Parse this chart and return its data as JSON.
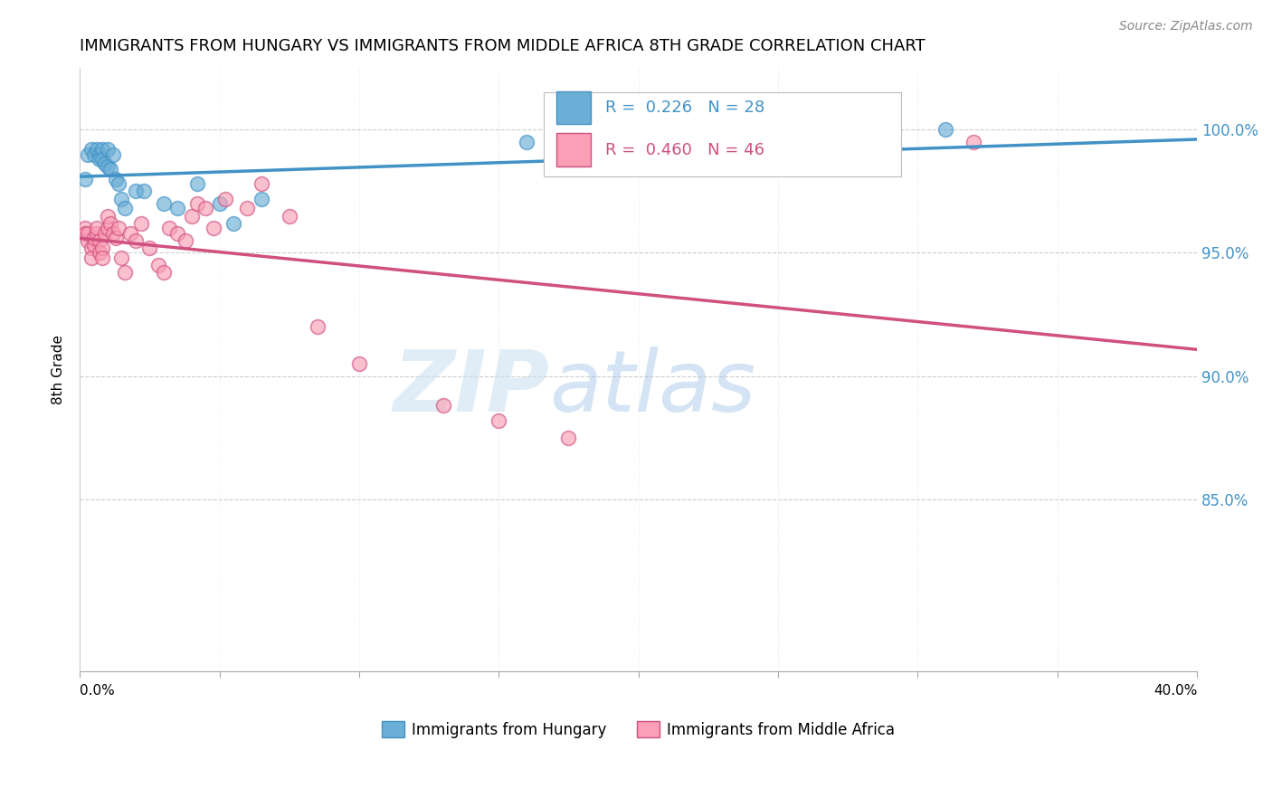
{
  "title": "IMMIGRANTS FROM HUNGARY VS IMMIGRANTS FROM MIDDLE AFRICA 8TH GRADE CORRELATION CHART",
  "source": "Source: ZipAtlas.com",
  "ylabel": "8th Grade",
  "yaxis_labels": [
    "100.0%",
    "95.0%",
    "90.0%",
    "85.0%"
  ],
  "yaxis_values": [
    1.0,
    0.95,
    0.9,
    0.85
  ],
  "xlim": [
    0.0,
    0.4
  ],
  "ylim": [
    0.78,
    1.025
  ],
  "color_hungary": "#6baed6",
  "color_africa": "#fa9fb5",
  "color_line_hungary": "#4292c6",
  "color_line_africa": "#d05080",
  "hungary_x": [
    0.002,
    0.003,
    0.004,
    0.005,
    0.006,
    0.007,
    0.007,
    0.008,
    0.008,
    0.009,
    0.01,
    0.01,
    0.011,
    0.012,
    0.013,
    0.014,
    0.015,
    0.016,
    0.02,
    0.023,
    0.03,
    0.035,
    0.042,
    0.05,
    0.055,
    0.065,
    0.16,
    0.31
  ],
  "hungary_y": [
    0.98,
    0.99,
    0.992,
    0.99,
    0.992,
    0.99,
    0.988,
    0.992,
    0.988,
    0.986,
    0.985,
    0.992,
    0.984,
    0.99,
    0.98,
    0.978,
    0.972,
    0.968,
    0.975,
    0.975,
    0.97,
    0.968,
    0.978,
    0.97,
    0.962,
    0.972,
    0.995,
    1.0
  ],
  "africa_x": [
    0.002,
    0.002,
    0.003,
    0.003,
    0.004,
    0.004,
    0.005,
    0.005,
    0.006,
    0.006,
    0.007,
    0.007,
    0.008,
    0.008,
    0.009,
    0.01,
    0.01,
    0.011,
    0.012,
    0.013,
    0.014,
    0.015,
    0.016,
    0.018,
    0.02,
    0.022,
    0.025,
    0.028,
    0.03,
    0.032,
    0.035,
    0.038,
    0.04,
    0.042,
    0.045,
    0.048,
    0.052,
    0.06,
    0.065,
    0.075,
    0.085,
    0.1,
    0.13,
    0.15,
    0.175,
    0.32
  ],
  "africa_y": [
    0.96,
    0.958,
    0.955,
    0.958,
    0.952,
    0.948,
    0.953,
    0.956,
    0.958,
    0.96,
    0.955,
    0.95,
    0.952,
    0.948,
    0.958,
    0.96,
    0.965,
    0.962,
    0.958,
    0.956,
    0.96,
    0.948,
    0.942,
    0.958,
    0.955,
    0.962,
    0.952,
    0.945,
    0.942,
    0.96,
    0.958,
    0.955,
    0.965,
    0.97,
    0.968,
    0.96,
    0.972,
    0.968,
    0.978,
    0.965,
    0.92,
    0.905,
    0.888,
    0.882,
    0.875,
    0.995
  ],
  "watermark_zip": "ZIP",
  "watermark_atlas": "atlas",
  "background_color": "#ffffff",
  "legend_hungary_text": "R =  0.226   N = 28",
  "legend_africa_text": "R =  0.460   N = 46",
  "bottom_legend_hungary": "Immigrants from Hungary",
  "bottom_legend_africa": "Immigrants from Middle Africa"
}
